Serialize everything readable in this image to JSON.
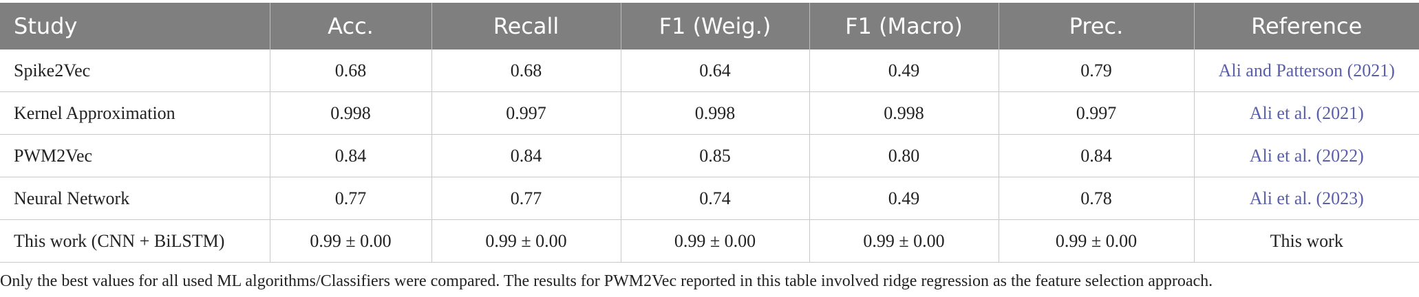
{
  "table": {
    "headers": [
      "Study",
      "Acc.",
      "Recall",
      "F1 (Weig.)",
      "F1 (Macro)",
      "Prec.",
      "Reference"
    ],
    "rows": [
      {
        "study": "Spike2Vec",
        "acc": "0.68",
        "recall": "0.68",
        "f1w": "0.64",
        "f1m": "0.49",
        "prec": "0.79",
        "ref": "Ali and Patterson (2021)"
      },
      {
        "study": "Kernel Approximation",
        "acc": "0.998",
        "recall": "0.997",
        "f1w": "0.998",
        "f1m": "0.998",
        "prec": "0.997",
        "ref": "Ali et al. (2021)"
      },
      {
        "study": "PWM2Vec",
        "acc": "0.84",
        "recall": "0.84",
        "f1w": "0.85",
        "f1m": "0.80",
        "prec": "0.84",
        "ref": "Ali et al. (2022)"
      },
      {
        "study": "Neural Network",
        "acc": "0.77",
        "recall": "0.77",
        "f1w": "0.74",
        "f1m": "0.49",
        "prec": "0.78",
        "ref": "Ali et al. (2023)"
      },
      {
        "study": "This work (CNN + BiLSTM)",
        "acc": "0.99 ± 0.00",
        "recall": "0.99 ± 0.00",
        "f1w": "0.99 ± 0.00",
        "f1m": "0.99 ± 0.00",
        "prec": "0.99 ± 0.00",
        "ref": "This work"
      }
    ]
  },
  "footnote": "Only the best values for all used ML algorithms/Classifiers were compared. The results for PWM2Vec reported in this table involved ridge regression as the feature selection approach.",
  "colors": {
    "header_bg": "#7f7f7f",
    "header_text": "#ffffff",
    "link": "#5a5fa8"
  }
}
